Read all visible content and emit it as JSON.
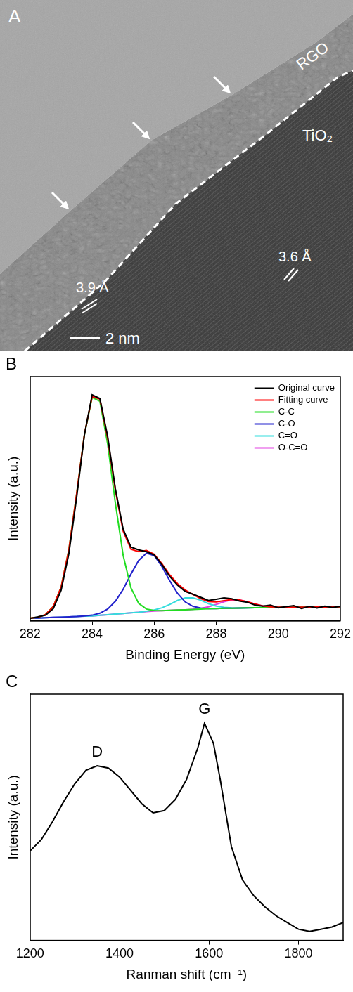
{
  "image_panel": {
    "panel_label": "A",
    "layer_labels": {
      "top": "RGO",
      "bottom": "TiO₂"
    },
    "lattice_spacings": [
      "3.9 Å",
      "3.6 Å"
    ],
    "scale_bar": "2 nm"
  },
  "chart_data": [
    {
      "panel_label": "B",
      "type": "line",
      "x_label": "Binding Energy (eV)",
      "y_label": "Intensity (a.u.)",
      "x": [
        282,
        282.25,
        282.5,
        282.75,
        283,
        283.25,
        283.5,
        283.75,
        284,
        284.25,
        284.5,
        284.75,
        285,
        285.25,
        285.5,
        285.75,
        286,
        286.25,
        286.5,
        286.75,
        287,
        287.25,
        287.5,
        287.75,
        288,
        288.25,
        288.5,
        288.75,
        289,
        289.25,
        289.5,
        289.75,
        290,
        290.25,
        290.5,
        290.75,
        291,
        291.25,
        291.5,
        291.75,
        292
      ],
      "series": [
        {
          "name": "Original curve",
          "color": "#000000",
          "values": [
            1.0,
            1.6,
            2.3,
            5.0,
            12.5,
            27.5,
            50.5,
            76.0,
            92.5,
            91.0,
            75.5,
            54.0,
            37.5,
            30.2,
            29.0,
            28.3,
            27.0,
            23.0,
            18.2,
            14.6,
            12.0,
            10.9,
            9.6,
            8.3,
            8.8,
            9.4,
            9.0,
            8.1,
            7.6,
            6.4,
            6.0,
            6.4,
            5.3,
            5.8,
            6.2,
            5.0,
            5.9,
            5.2,
            6.0,
            5.4,
            5.9
          ]
        },
        {
          "name": "Fitting curve",
          "color": "#ff0000",
          "values": [
            1.1,
            1.4,
            2.6,
            5.9,
            13.8,
            29.2,
            52.0,
            76.3,
            91.8,
            90.8,
            74.7,
            53.3,
            36.7,
            29.3,
            28.3,
            28.8,
            27.3,
            23.4,
            18.8,
            15.2,
            12.6,
            10.8,
            9.1,
            7.9,
            7.7,
            8.2,
            8.7,
            8.5,
            7.8,
            6.85,
            6.1,
            5.7,
            5.6,
            5.5,
            5.55,
            5.6,
            5.6,
            5.65,
            5.65,
            5.7,
            5.7
          ]
        },
        {
          "name": "C-C",
          "color": "#22dd22",
          "values": [
            1.1,
            1.4,
            2.6,
            5.9,
            13.8,
            29.2,
            52.0,
            76.2,
            91.5,
            89.9,
            72.4,
            48.0,
            26.8,
            13.5,
            7.1,
            4.8,
            4.2,
            4.1,
            4.25,
            4.4,
            4.5,
            4.6,
            4.75,
            4.9,
            5.0,
            5.1,
            5.15,
            5.2,
            5.3,
            5.35,
            5.4,
            5.45,
            5.5,
            5.5,
            5.55,
            5.6,
            5.6,
            5.65,
            5.65,
            5.7,
            5.7
          ]
        },
        {
          "name": "C-O",
          "color": "#2222cc",
          "values": [
            1.0,
            1.1,
            1.25,
            1.4,
            1.5,
            1.6,
            1.75,
            2.0,
            2.3,
            3.1,
            4.8,
            8.0,
            12.9,
            19.1,
            24.7,
            27.7,
            26.7,
            22.2,
            16.4,
            11.3,
            7.7,
            5.9,
            5.2,
            5.0,
            5.0,
            5.1,
            5.15,
            5.2,
            5.3,
            5.35,
            5.4,
            5.45,
            5.5,
            5.5,
            5.55,
            5.6,
            5.6,
            5.65,
            5.65,
            5.7,
            5.7
          ]
        },
        {
          "name": "C=O",
          "color": "#33dddd",
          "values": [
            1.0,
            1.1,
            1.25,
            1.4,
            1.5,
            1.6,
            1.75,
            1.9,
            2.0,
            2.25,
            2.5,
            2.75,
            3.0,
            3.25,
            3.5,
            3.9,
            4.4,
            5.3,
            6.7,
            8.3,
            9.4,
            9.4,
            8.4,
            7.0,
            6.0,
            5.5,
            5.25,
            5.2,
            5.3,
            5.35,
            5.4,
            5.45,
            5.5,
            5.5,
            5.55,
            5.6,
            5.6,
            5.65,
            5.65,
            5.7,
            5.7
          ]
        },
        {
          "name": "O-C=O",
          "color": "#e040e0",
          "values": [
            1.0,
            1.1,
            1.25,
            1.4,
            1.5,
            1.6,
            1.75,
            1.9,
            2.0,
            2.25,
            2.5,
            2.75,
            3.0,
            3.25,
            3.5,
            3.75,
            4.0,
            4.1,
            4.25,
            4.4,
            4.5,
            4.7,
            5.05,
            5.7,
            6.7,
            7.8,
            8.6,
            8.5,
            7.8,
            6.85,
            6.1,
            5.7,
            5.6,
            5.5,
            5.55,
            5.6,
            5.6,
            5.65,
            5.65,
            5.7,
            5.7
          ]
        }
      ],
      "xlim": [
        282,
        292
      ],
      "xticks": [
        282,
        284,
        286,
        288,
        290,
        292
      ],
      "ylim": [
        0,
        100
      ],
      "tick_labels": "x",
      "grid": false,
      "legend": "upper right"
    },
    {
      "panel_label": "C",
      "type": "line",
      "x_label": "Ranman shift (cm⁻¹)",
      "y_label": "Intensity (a.u.)",
      "x": [
        1200,
        1225,
        1250,
        1275,
        1300,
        1325,
        1350,
        1375,
        1400,
        1425,
        1450,
        1475,
        1500,
        1525,
        1550,
        1575,
        1590,
        1610,
        1625,
        1650,
        1675,
        1700,
        1725,
        1750,
        1775,
        1800,
        1825,
        1850,
        1875,
        1900
      ],
      "values": [
        40,
        45,
        53,
        62,
        70,
        76,
        78,
        77,
        73,
        67,
        61,
        57,
        58,
        63,
        72,
        86,
        97,
        88,
        72,
        42,
        27,
        20,
        15,
        11,
        8,
        5,
        4,
        5,
        6,
        8
      ],
      "color": "#000000",
      "annotations": [
        {
          "text": "D",
          "x": 1350,
          "y": 78
        },
        {
          "text": "G",
          "x": 1590,
          "y": 97
        }
      ],
      "xlim": [
        1200,
        1900
      ],
      "xticks": [
        1200,
        1400,
        1600,
        1800
      ],
      "ylim": [
        0,
        110
      ],
      "tick_labels": "x",
      "grid": false
    }
  ]
}
